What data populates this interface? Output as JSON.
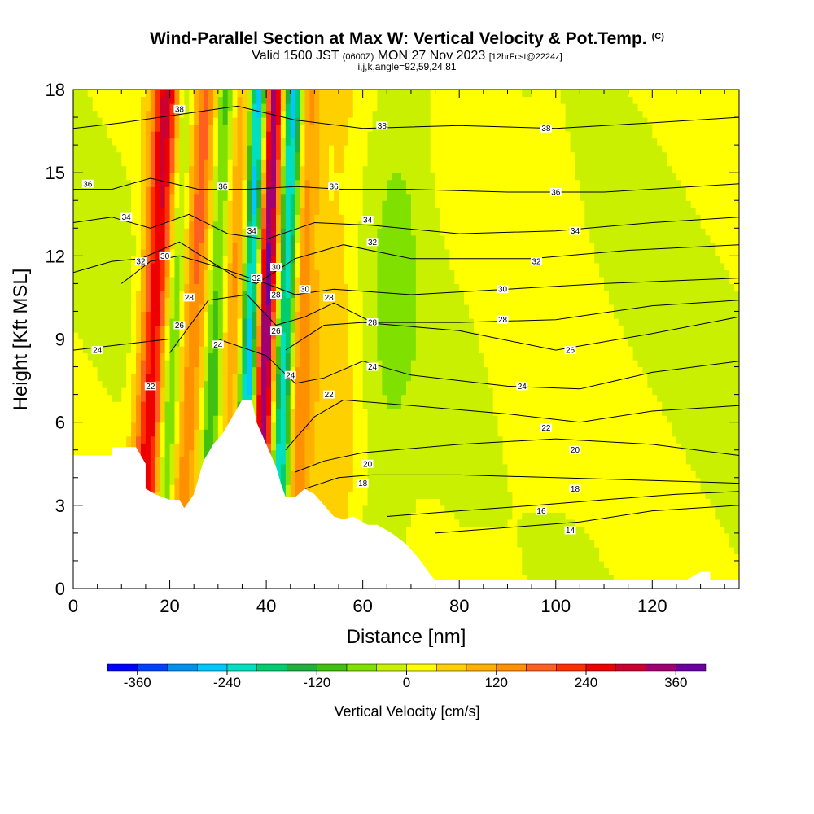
{
  "header": {
    "title": "Wind-Parallel Section at Max W: Vertical Velocity & Pot.Temp.",
    "copyright": "(C)",
    "valid_prefix": "Valid 1500 JST",
    "valid_utc": "(0600Z)",
    "valid_date": "MON 27 Nov 2023",
    "forecast": "[12hrFcst@2224z]",
    "grid_info": "i,j,k,angle=92,59,24,81"
  },
  "chart_data": {
    "type": "heatmap",
    "xlabel": "Distance [nm]",
    "ylabel": "Height [Kft MSL]",
    "xlim": [
      0,
      138
    ],
    "ylim": [
      0,
      18
    ],
    "x_ticks": [
      0,
      20,
      40,
      60,
      80,
      100,
      120
    ],
    "y_ticks": [
      0,
      3,
      6,
      9,
      12,
      15,
      18
    ],
    "colorbar": {
      "label": "Vertical Velocity [cm/s]",
      "min": -400,
      "max": 400,
      "step": 40,
      "tick_values": [
        -360,
        -240,
        -120,
        0,
        120,
        240,
        360
      ],
      "tick_labels": [
        "-360",
        "-240",
        "-120",
        "0",
        "120",
        "240",
        "360"
      ],
      "colors": [
        "#0000ff",
        "#0040ff",
        "#0090ee",
        "#00c8ff",
        "#00e0c0",
        "#00cc70",
        "#20b040",
        "#40c010",
        "#80e000",
        "#c8f000",
        "#ffff00",
        "#ffd000",
        "#ffb000",
        "#ff9000",
        "#ff6020",
        "#ff3000",
        "#ee0000",
        "#cc0030",
        "#a00070",
        "#6a00a0"
      ]
    },
    "terrain_kft": [
      [
        0,
        4.8
      ],
      [
        8,
        4.8
      ],
      [
        8,
        5.1
      ],
      [
        13,
        5.1
      ],
      [
        15,
        4.5
      ],
      [
        15,
        3.6
      ],
      [
        17,
        3.4
      ],
      [
        20,
        3.2
      ],
      [
        22,
        3.2
      ],
      [
        23,
        2.9
      ],
      [
        25,
        3.4
      ],
      [
        27,
        4.6
      ],
      [
        29,
        5.2
      ],
      [
        31,
        5.6
      ],
      [
        34,
        6.5
      ],
      [
        35,
        6.8
      ],
      [
        37,
        6.8
      ],
      [
        38,
        6.0
      ],
      [
        40,
        5.2
      ],
      [
        42,
        4.4
      ],
      [
        43,
        3.8
      ],
      [
        44,
        3.3
      ],
      [
        46,
        3.3
      ],
      [
        48,
        3.6
      ],
      [
        50,
        3.4
      ],
      [
        52,
        3.0
      ],
      [
        54,
        2.6
      ],
      [
        56,
        2.5
      ],
      [
        58,
        2.6
      ],
      [
        61,
        2.3
      ],
      [
        63,
        2.3
      ],
      [
        66,
        2.0
      ],
      [
        69,
        1.6
      ],
      [
        72,
        1.0
      ],
      [
        74,
        0.5
      ],
      [
        75,
        0.3
      ],
      [
        127,
        0.3
      ],
      [
        130,
        0.6
      ],
      [
        132,
        0.6
      ],
      [
        132,
        0.3
      ],
      [
        138,
        0.3
      ]
    ],
    "vertical_velocity_cm_s": {
      "background": 0,
      "plumes": [
        {
          "x_base": 14,
          "lean_nm_per_kft": 0.3,
          "width_nm": 3.0,
          "value": 280
        },
        {
          "x_base": 18,
          "lean_nm_per_kft": 0.3,
          "width_nm": 2.0,
          "value": -120
        },
        {
          "x_base": 22,
          "lean_nm_per_kft": 0.3,
          "width_nm": 3.0,
          "value": 160
        },
        {
          "x_base": 27,
          "lean_nm_per_kft": 0.25,
          "width_nm": 2.0,
          "value": -120
        },
        {
          "x_base": 31,
          "lean_nm_per_kft": 0.25,
          "width_nm": 2.5,
          "value": 120
        },
        {
          "x_base": 35,
          "lean_nm_per_kft": 0.2,
          "width_nm": 2.0,
          "value": -360
        },
        {
          "x_base": 38,
          "lean_nm_per_kft": 0.2,
          "width_nm": 2.5,
          "value": 400
        },
        {
          "x_base": 42,
          "lean_nm_per_kft": 0.2,
          "width_nm": 2.3,
          "value": -320
        },
        {
          "x_base": 45,
          "lean_nm_per_kft": 0.2,
          "width_nm": 3.0,
          "value": 160
        },
        {
          "x_base": 53,
          "lean_nm_per_kft": 0.15,
          "width_nm": 5.0,
          "value": 60
        },
        {
          "x_base": 63,
          "lean_nm_per_kft": 0.35,
          "width_nm": 6.0,
          "value": -40
        },
        {
          "x_base": 90,
          "lean_nm_per_kft": 0.6,
          "width_nm": 10.0,
          "value": 20
        }
      ]
    },
    "potential_temperature_contours": [
      {
        "label": "14",
        "points": [
          [
            75,
            2.0
          ],
          [
            90,
            2.2
          ],
          [
            105,
            2.4
          ],
          [
            120,
            2.8
          ],
          [
            138,
            3.0
          ]
        ]
      },
      {
        "label": "16",
        "points": [
          [
            65,
            2.6
          ],
          [
            80,
            2.8
          ],
          [
            96,
            3.0
          ],
          [
            110,
            3.2
          ],
          [
            125,
            3.4
          ],
          [
            138,
            3.5
          ]
        ]
      },
      {
        "label": "18",
        "points": [
          [
            48,
            3.6
          ],
          [
            55,
            4.0
          ],
          [
            62,
            4.1
          ],
          [
            80,
            4.1
          ],
          [
            100,
            4.0
          ],
          [
            120,
            3.9
          ],
          [
            138,
            3.8
          ]
        ]
      },
      {
        "label": "20",
        "points": [
          [
            46,
            4.2
          ],
          [
            52,
            4.6
          ],
          [
            60,
            4.9
          ],
          [
            80,
            5.2
          ],
          [
            100,
            5.4
          ],
          [
            120,
            5.2
          ],
          [
            138,
            4.8
          ]
        ]
      },
      {
        "label": "22",
        "points": [
          [
            44,
            5.0
          ],
          [
            50,
            6.2
          ],
          [
            56,
            6.8
          ],
          [
            70,
            6.6
          ],
          [
            90,
            6.3
          ],
          [
            105,
            6.0
          ],
          [
            120,
            6.4
          ],
          [
            138,
            6.6
          ]
        ]
      },
      {
        "label": "24",
        "points": [
          [
            0,
            8.6
          ],
          [
            10,
            8.8
          ],
          [
            20,
            9.0
          ],
          [
            30,
            9.0
          ],
          [
            40,
            8.4
          ],
          [
            46,
            7.4
          ],
          [
            52,
            7.6
          ],
          [
            60,
            8.2
          ],
          [
            70,
            7.7
          ],
          [
            90,
            7.3
          ],
          [
            105,
            7.2
          ],
          [
            120,
            7.8
          ],
          [
            138,
            8.2
          ]
        ]
      },
      {
        "label": "26",
        "points": [
          [
            44,
            8.6
          ],
          [
            52,
            9.5
          ],
          [
            60,
            9.6
          ],
          [
            80,
            9.3
          ],
          [
            100,
            8.6
          ],
          [
            120,
            9.2
          ],
          [
            138,
            9.8
          ]
        ]
      },
      {
        "label": "28",
        "points": [
          [
            20,
            8.5
          ],
          [
            28,
            10.4
          ],
          [
            36,
            10.6
          ],
          [
            42,
            9.5
          ],
          [
            48,
            9.8
          ],
          [
            54,
            10.3
          ],
          [
            62,
            9.6
          ],
          [
            80,
            9.6
          ],
          [
            100,
            9.7
          ],
          [
            120,
            10.2
          ],
          [
            138,
            10.4
          ]
        ]
      },
      {
        "label": "30",
        "points": [
          [
            10,
            11.0
          ],
          [
            16,
            11.8
          ],
          [
            22,
            12.0
          ],
          [
            30,
            11.6
          ],
          [
            40,
            11.0
          ],
          [
            46,
            10.6
          ],
          [
            54,
            10.8
          ],
          [
            70,
            10.6
          ],
          [
            90,
            10.8
          ],
          [
            110,
            11.0
          ],
          [
            138,
            11.2
          ]
        ]
      },
      {
        "label": "32",
        "points": [
          [
            0,
            11.4
          ],
          [
            8,
            11.8
          ],
          [
            14,
            11.9
          ],
          [
            22,
            12.5
          ],
          [
            34,
            11.2
          ],
          [
            38,
            11.0
          ],
          [
            46,
            11.9
          ],
          [
            56,
            12.4
          ],
          [
            70,
            11.9
          ],
          [
            95,
            11.9
          ],
          [
            115,
            12.2
          ],
          [
            138,
            12.4
          ]
        ]
      },
      {
        "label": "34",
        "points": [
          [
            0,
            13.2
          ],
          [
            8,
            13.4
          ],
          [
            16,
            13.0
          ],
          [
            24,
            13.5
          ],
          [
            32,
            12.8
          ],
          [
            40,
            12.6
          ],
          [
            50,
            13.2
          ],
          [
            62,
            13.1
          ],
          [
            80,
            12.8
          ],
          [
            100,
            12.9
          ],
          [
            120,
            13.2
          ],
          [
            138,
            13.4
          ]
        ]
      },
      {
        "label": "36",
        "points": [
          [
            0,
            14.4
          ],
          [
            8,
            14.4
          ],
          [
            16,
            14.8
          ],
          [
            26,
            14.4
          ],
          [
            36,
            14.4
          ],
          [
            46,
            14.5
          ],
          [
            56,
            14.4
          ],
          [
            70,
            14.4
          ],
          [
            90,
            14.3
          ],
          [
            110,
            14.3
          ],
          [
            138,
            14.6
          ]
        ]
      },
      {
        "label": "38",
        "points": [
          [
            0,
            16.6
          ],
          [
            10,
            16.8
          ],
          [
            22,
            17.1
          ],
          [
            34,
            17.4
          ],
          [
            46,
            16.9
          ],
          [
            60,
            16.6
          ],
          [
            80,
            16.7
          ],
          [
            100,
            16.6
          ],
          [
            120,
            16.8
          ],
          [
            138,
            17.0
          ]
        ]
      }
    ],
    "contour_labels": [
      {
        "text": "38",
        "x": 22,
        "y": 17.3
      },
      {
        "text": "38",
        "x": 64,
        "y": 16.7
      },
      {
        "text": "38",
        "x": 98,
        "y": 16.6
      },
      {
        "text": "36",
        "x": 3,
        "y": 14.6
      },
      {
        "text": "36",
        "x": 31,
        "y": 14.5
      },
      {
        "text": "36",
        "x": 54,
        "y": 14.5
      },
      {
        "text": "36",
        "x": 100,
        "y": 14.3
      },
      {
        "text": "34",
        "x": 11,
        "y": 13.4
      },
      {
        "text": "34",
        "x": 37,
        "y": 12.9
      },
      {
        "text": "34",
        "x": 61,
        "y": 13.3
      },
      {
        "text": "34",
        "x": 104,
        "y": 12.9
      },
      {
        "text": "32",
        "x": 14,
        "y": 11.8
      },
      {
        "text": "32",
        "x": 38,
        "y": 11.2
      },
      {
        "text": "32",
        "x": 62,
        "y": 12.5
      },
      {
        "text": "32",
        "x": 96,
        "y": 11.8
      },
      {
        "text": "30",
        "x": 19,
        "y": 12.0
      },
      {
        "text": "30",
        "x": 42,
        "y": 11.6
      },
      {
        "text": "30",
        "x": 48,
        "y": 10.8
      },
      {
        "text": "30",
        "x": 89,
        "y": 10.8
      },
      {
        "text": "28",
        "x": 24,
        "y": 10.5
      },
      {
        "text": "28",
        "x": 42,
        "y": 10.6
      },
      {
        "text": "28",
        "x": 53,
        "y": 10.5
      },
      {
        "text": "28",
        "x": 89,
        "y": 9.7
      },
      {
        "text": "28",
        "x": 62,
        "y": 9.6
      },
      {
        "text": "26",
        "x": 22,
        "y": 9.5
      },
      {
        "text": "26",
        "x": 42,
        "y": 9.3
      },
      {
        "text": "26",
        "x": 103,
        "y": 8.6
      },
      {
        "text": "24",
        "x": 5,
        "y": 8.6
      },
      {
        "text": "24",
        "x": 30,
        "y": 8.8
      },
      {
        "text": "24",
        "x": 62,
        "y": 8.0
      },
      {
        "text": "24",
        "x": 93,
        "y": 7.3
      },
      {
        "text": "24",
        "x": 45,
        "y": 7.7
      },
      {
        "text": "22",
        "x": 16,
        "y": 7.3
      },
      {
        "text": "22",
        "x": 53,
        "y": 7.0
      },
      {
        "text": "22",
        "x": 98,
        "y": 5.8
      },
      {
        "text": "20",
        "x": 61,
        "y": 4.5
      },
      {
        "text": "20",
        "x": 104,
        "y": 5.0
      },
      {
        "text": "18",
        "x": 60,
        "y": 3.8
      },
      {
        "text": "18",
        "x": 104,
        "y": 3.6
      },
      {
        "text": "16",
        "x": 97,
        "y": 2.8
      },
      {
        "text": "14",
        "x": 103,
        "y": 2.1
      }
    ]
  }
}
